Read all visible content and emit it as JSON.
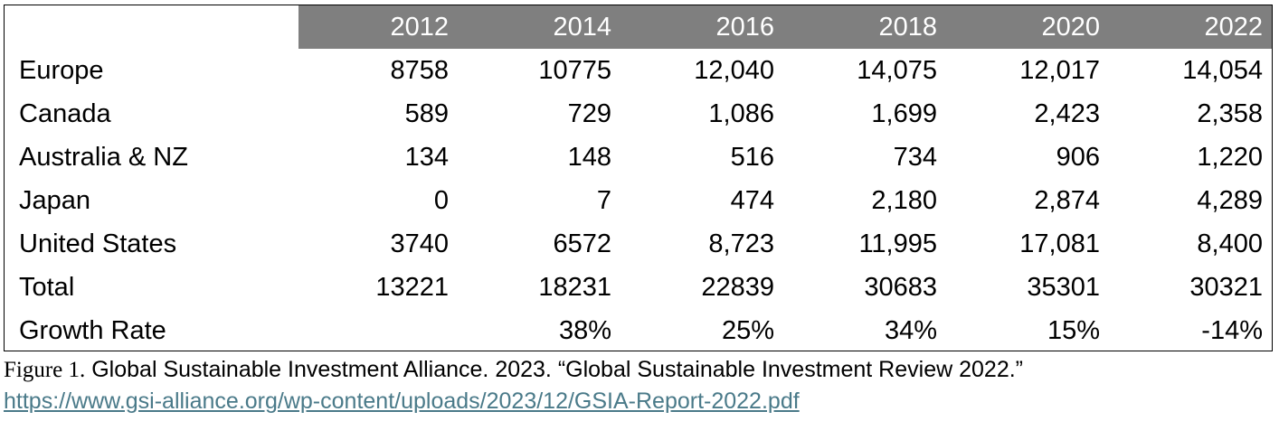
{
  "chart_data": {
    "type": "table",
    "columns": [
      "2012",
      "2014",
      "2016",
      "2018",
      "2020",
      "2022"
    ],
    "rows": [
      {
        "label": "Europe",
        "cells": [
          "8758",
          "10775",
          "12,040",
          "14,075",
          "12,017",
          "14,054"
        ]
      },
      {
        "label": "Canada",
        "cells": [
          "589",
          "729",
          "1,086",
          "1,699",
          "2,423",
          "2,358"
        ]
      },
      {
        "label": "Australia & NZ",
        "cells": [
          "134",
          "148",
          "516",
          "734",
          "906",
          "1,220"
        ]
      },
      {
        "label": "Japan",
        "cells": [
          "0",
          "7",
          "474",
          "2,180",
          "2,874",
          "4,289"
        ]
      },
      {
        "label": "United States",
        "cells": [
          "3740",
          "6572",
          "8,723",
          "11,995",
          "17,081",
          "8,400"
        ]
      },
      {
        "label": "Total",
        "cells": [
          "13221",
          "18231",
          "22839",
          "30683",
          "35301",
          "30321"
        ]
      },
      {
        "label": "Growth Rate",
        "cells": [
          "",
          "38%",
          "25%",
          "34%",
          "15%",
          "-14%"
        ]
      }
    ],
    "header_bg_color": "#7f7f7f",
    "header_text_color": "#ffffff"
  },
  "caption": {
    "figure_label": "Figure 1.",
    "text": " Global Sustainable Investment Alliance. 2023. “Global Sustainable Investment Review 2022.”",
    "link": "https://www.gsi-alliance.org/wp-content/uploads/2023/12/GSIA-Report-2022.pdf",
    "link_color": "#4a7a89"
  }
}
